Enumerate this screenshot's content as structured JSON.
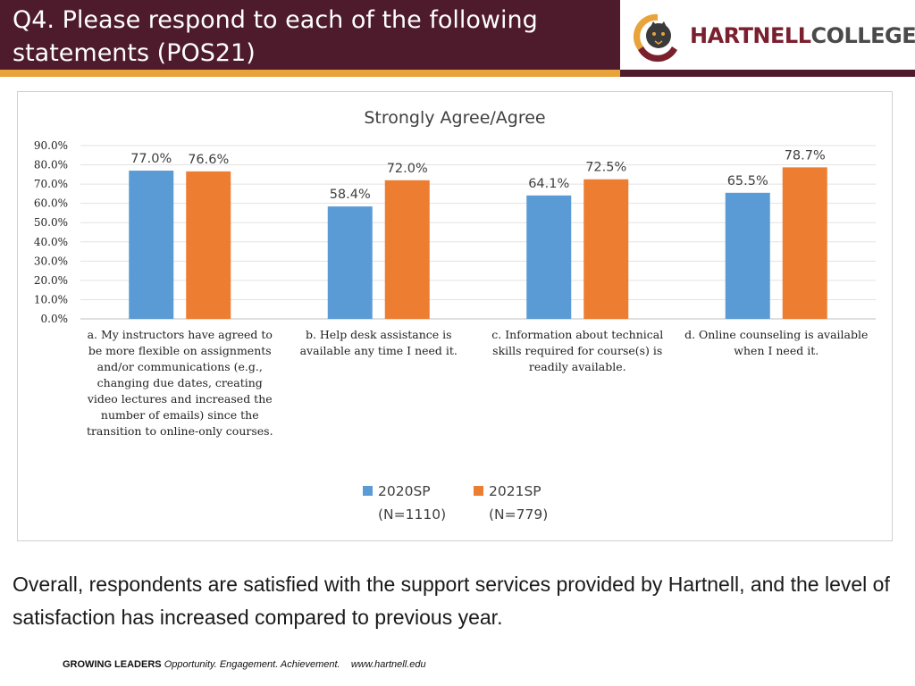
{
  "slide": {
    "title": "Q4. Please respond to each of the following statements (POS21)",
    "summary": "Overall, respondents are satisfied with the support services provided by Hartnell, and the level of satisfaction has increased compared to previous year."
  },
  "logo": {
    "text_a": "HARTNELL",
    "text_b": "COLLEGE"
  },
  "footer": {
    "bold": "GROWING LEADERS",
    "tagline": "Opportunity. Engagement. Achievement.",
    "url": "www.hartnell.edu"
  },
  "colors": {
    "header": "#4e1b2c",
    "accent": "#e8a33a",
    "series_2020": "#5b9bd5",
    "series_2021": "#ed7d31"
  },
  "chart_data": {
    "type": "bar",
    "title": "Strongly Agree/Agree",
    "categories": [
      "a. My instructors have agreed to be more flexible on assignments and/or communications (e.g., changing due dates, creating video lectures and increased the number of emails) since the transition to online-only courses.",
      "b. Help desk assistance is available any time I need it.",
      "c. Information about technical skills required for course(s) is readily available.",
      "d. Online counseling is available when I need it."
    ],
    "series": [
      {
        "name": "2020SP (N=1110)",
        "values": [
          77.0,
          58.4,
          64.1,
          65.5
        ],
        "labels": [
          "77.0%",
          "58.4%",
          "64.1%",
          "65.5%"
        ],
        "color": "#5b9bd5"
      },
      {
        "name": "2021SP (N=779)",
        "values": [
          76.6,
          72.0,
          72.5,
          78.7
        ],
        "labels": [
          "76.6%",
          "72.0%",
          "72.5%",
          "78.7%"
        ],
        "color": "#ed7d31"
      }
    ],
    "legend_lines": [
      [
        "2020SP",
        "(N=1110)"
      ],
      [
        "2021SP",
        "(N=779)"
      ]
    ],
    "y_ticks": [
      "0.0%",
      "10.0%",
      "20.0%",
      "30.0%",
      "40.0%",
      "50.0%",
      "60.0%",
      "70.0%",
      "80.0%",
      "90.0%"
    ],
    "ylim": [
      0,
      90
    ],
    "grid": true,
    "legend": "bottom-center"
  }
}
